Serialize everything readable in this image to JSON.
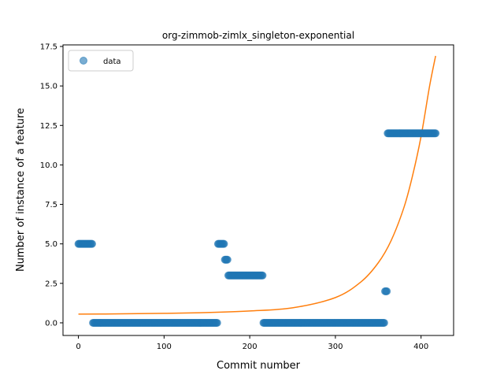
{
  "chart_data": {
    "type": "scatter",
    "title": "org-zimmob-zimlx_singleton-exponential",
    "xlabel": "Commit number",
    "ylabel": "Number of instance of a feature",
    "xlim": [
      -18,
      438
    ],
    "ylim": [
      -0.8,
      17.6
    ],
    "xticks": [
      0,
      100,
      200,
      300,
      400
    ],
    "xtick_labels": [
      "0",
      "100",
      "200",
      "300",
      "400"
    ],
    "yticks": [
      0.0,
      2.5,
      5.0,
      7.5,
      10.0,
      12.5,
      15.0,
      17.5
    ],
    "ytick_labels": [
      "0.0",
      "2.5",
      "5.0",
      "7.5",
      "10.0",
      "12.5",
      "15.0",
      "17.5"
    ],
    "grid": false,
    "legend": {
      "position": "top-left",
      "entries": [
        "data"
      ]
    },
    "colors": {
      "data": "#1f77b4",
      "fit": "#ff7f0e"
    },
    "series": [
      {
        "name": "data",
        "kind": "scatter",
        "segments": [
          {
            "x_start": 0,
            "x_end": 16,
            "y": 5
          },
          {
            "x_start": 17,
            "x_end": 162,
            "y": 0
          },
          {
            "x_start": 163,
            "x_end": 170,
            "y": 5
          },
          {
            "x_start": 171,
            "x_end": 174,
            "y": 4
          },
          {
            "x_start": 175,
            "x_end": 215,
            "y": 3
          },
          {
            "x_start": 216,
            "x_end": 357,
            "y": 0
          },
          {
            "x_start": 358,
            "x_end": 360,
            "y": 2
          },
          {
            "x_start": 361,
            "x_end": 417,
            "y": 12
          }
        ]
      },
      {
        "kind": "line",
        "x": [
          0,
          50,
          100,
          150,
          200,
          250,
          300,
          330,
          350,
          365,
          380,
          390,
          400,
          410,
          417
        ],
        "y": [
          0.55,
          0.57,
          0.6,
          0.65,
          0.75,
          0.95,
          1.6,
          2.6,
          3.8,
          5.2,
          7.3,
          9.3,
          11.8,
          15.0,
          16.9
        ]
      }
    ]
  }
}
